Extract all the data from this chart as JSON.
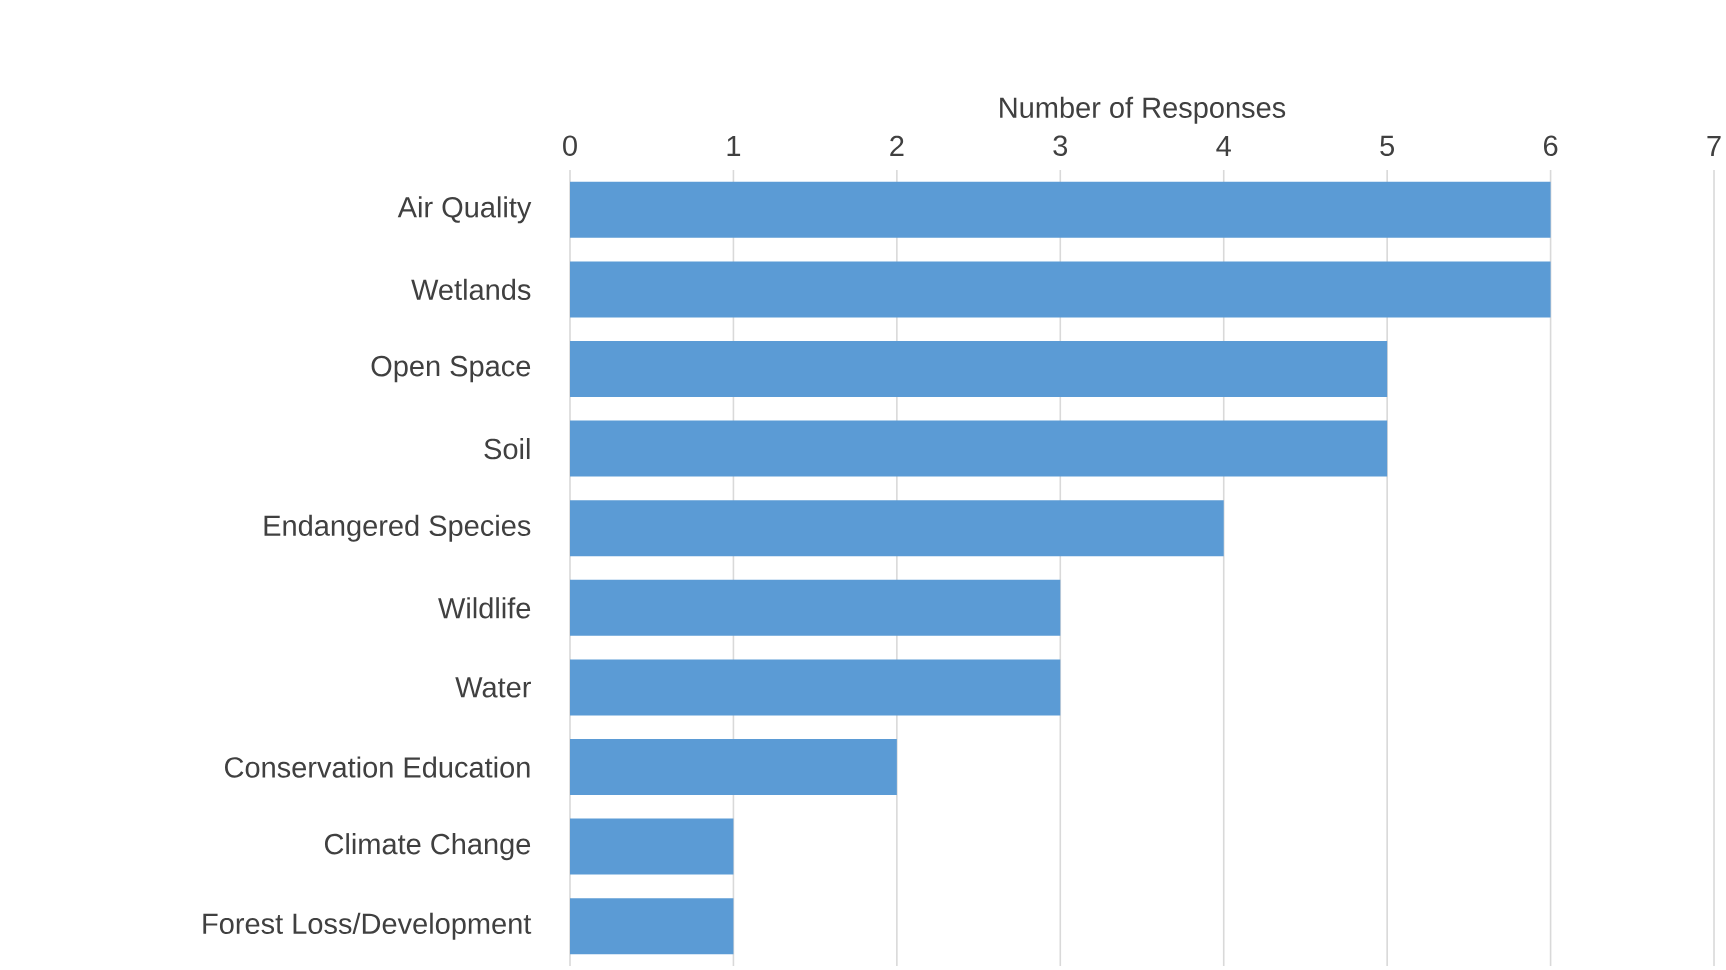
{
  "chart_data": {
    "type": "bar",
    "orientation": "horizontal",
    "xlabel": "Number of Responses",
    "categories": [
      "Air Quality",
      "Wetlands",
      "Open Space",
      "Soil",
      "Endangered Species",
      "Wildlife",
      "Water",
      "Conservation Education",
      "Climate Change",
      "Forest Loss/Development"
    ],
    "values": [
      6,
      6,
      5,
      5,
      4,
      3,
      3,
      2,
      1,
      1
    ],
    "color": "#5b9bd5",
    "xlim": [
      0,
      7
    ],
    "xticks": [
      0,
      1,
      2,
      3,
      4,
      5,
      6,
      7
    ],
    "grid": "x"
  }
}
